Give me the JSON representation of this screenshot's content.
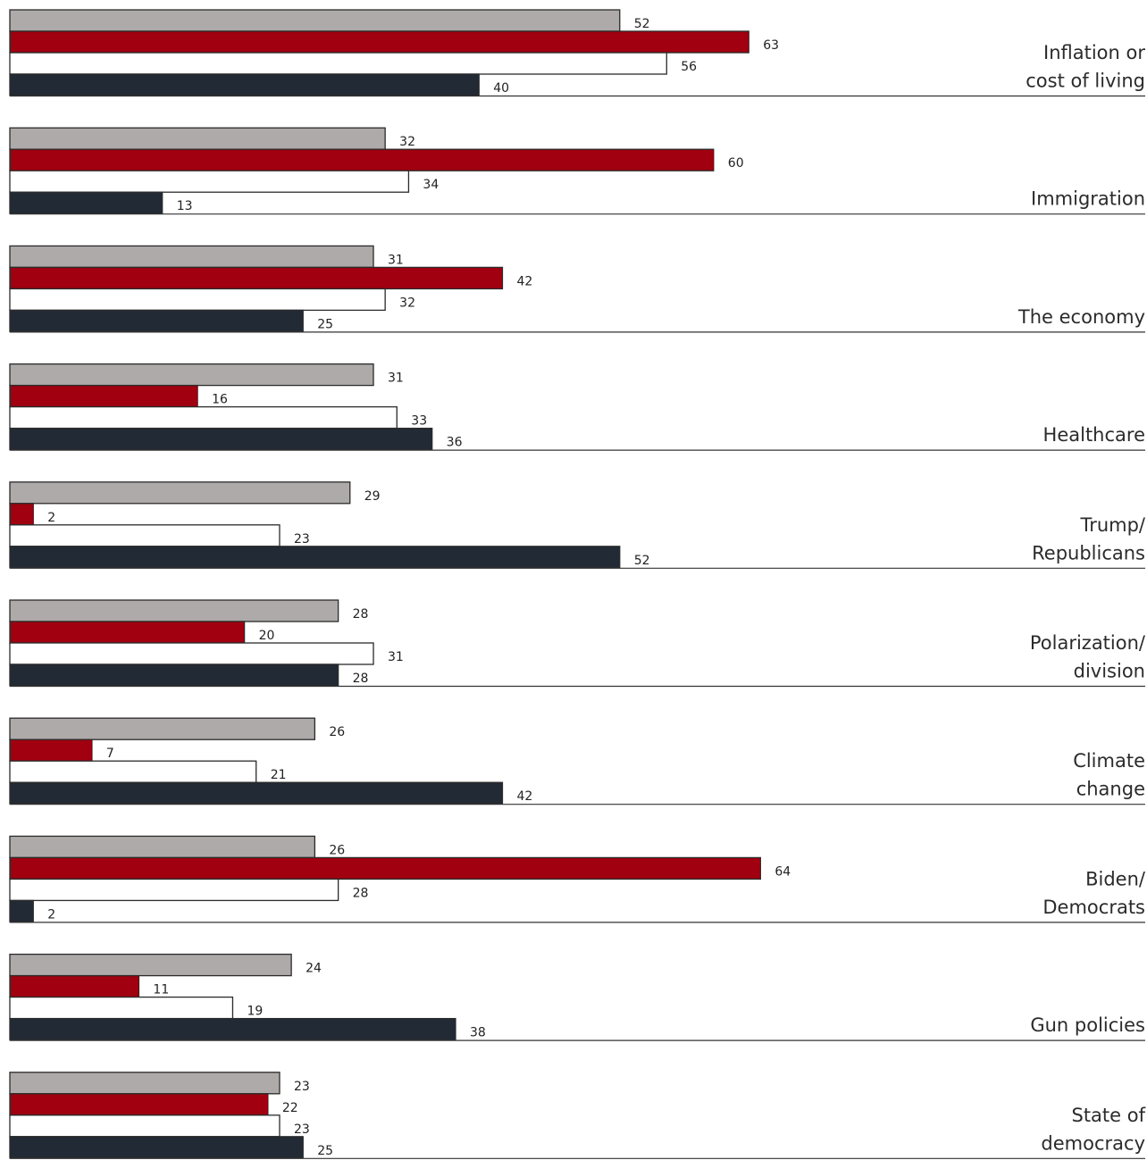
{
  "chart_data": {
    "type": "bar",
    "orientation": "horizontal",
    "categories": [
      "Inflation or cost of living",
      "Immigration",
      "The economy",
      "Healthcare",
      "Trump/ Republicans",
      "Polarization/ division",
      "Climate change",
      "Biden/ Democrats",
      "Gun policies",
      "State of democracy"
    ],
    "category_lines": [
      [
        "Inflation or",
        "cost of living"
      ],
      [
        "Immigration"
      ],
      [
        "The economy"
      ],
      [
        "Healthcare"
      ],
      [
        "Trump/",
        "Republicans"
      ],
      [
        "Polarization/",
        "division"
      ],
      [
        "Climate",
        "change"
      ],
      [
        "Biden/",
        "Democrats"
      ],
      [
        "Gun policies"
      ],
      [
        "State of",
        "democracy"
      ]
    ],
    "series": [
      {
        "color": "#aeaaa9",
        "values": [
          52,
          32,
          31,
          31,
          29,
          28,
          26,
          26,
          24,
          23
        ]
      },
      {
        "color": "#a0000f",
        "values": [
          63,
          60,
          42,
          16,
          2,
          20,
          7,
          64,
          11,
          22
        ]
      },
      {
        "color": "#ffffff",
        "values": [
          56,
          34,
          32,
          33,
          23,
          31,
          21,
          28,
          19,
          23
        ]
      },
      {
        "color": "#222a35",
        "values": [
          40,
          13,
          25,
          36,
          52,
          28,
          42,
          2,
          38,
          25
        ]
      }
    ],
    "data_labels": true,
    "axis_visible": false,
    "grid": false,
    "legend": "none"
  }
}
